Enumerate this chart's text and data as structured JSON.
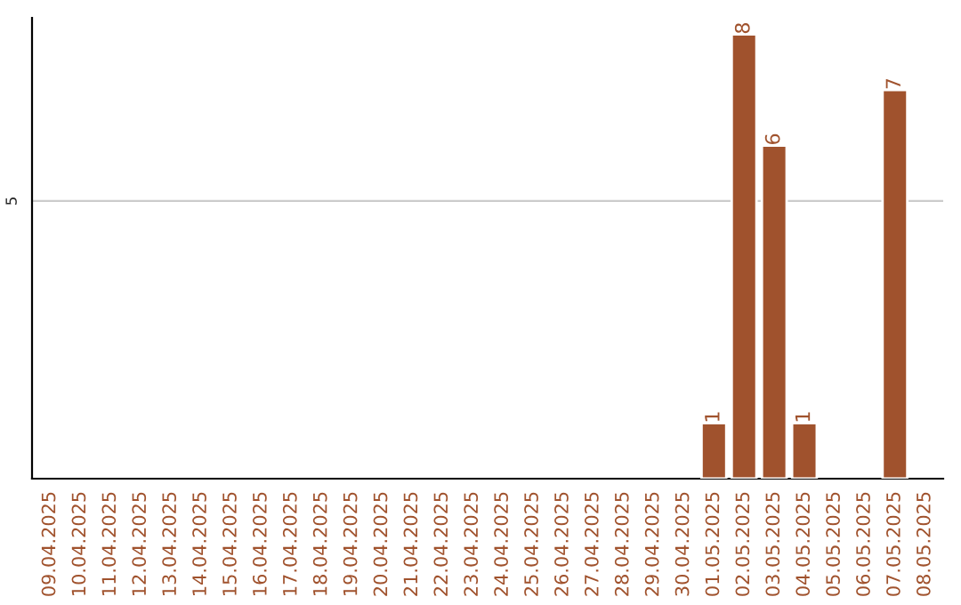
{
  "chart_data": {
    "type": "bar",
    "categories": [
      "09.04.2025",
      "10.04.2025",
      "11.04.2025",
      "12.04.2025",
      "13.04.2025",
      "14.04.2025",
      "15.04.2025",
      "16.04.2025",
      "17.04.2025",
      "18.04.2025",
      "19.04.2025",
      "20.04.2025",
      "21.04.2025",
      "22.04.2025",
      "23.04.2025",
      "24.04.2025",
      "25.04.2025",
      "26.04.2025",
      "27.04.2025",
      "28.04.2025",
      "29.04.2025",
      "30.04.2025",
      "01.05.2025",
      "02.05.2025",
      "03.05.2025",
      "04.05.2025",
      "05.05.2025",
      "06.05.2025",
      "07.05.2025",
      "08.05.2025"
    ],
    "values": [
      null,
      null,
      null,
      null,
      null,
      null,
      null,
      null,
      null,
      null,
      null,
      null,
      null,
      null,
      null,
      null,
      null,
      null,
      null,
      null,
      null,
      null,
      1,
      8,
      6,
      1,
      null,
      null,
      7,
      null
    ],
    "value_labels": [
      null,
      null,
      null,
      null,
      null,
      null,
      null,
      null,
      null,
      null,
      null,
      null,
      null,
      null,
      null,
      null,
      null,
      null,
      null,
      null,
      null,
      null,
      "1",
      "8",
      "6",
      "1",
      null,
      null,
      "7",
      null
    ],
    "color": "#a0522d",
    "ylim": [
      0,
      8.3
    ],
    "ref_lines": [
      {
        "axis": "y",
        "value": 5,
        "label": "5",
        "color": "#cccccc"
      }
    ]
  }
}
